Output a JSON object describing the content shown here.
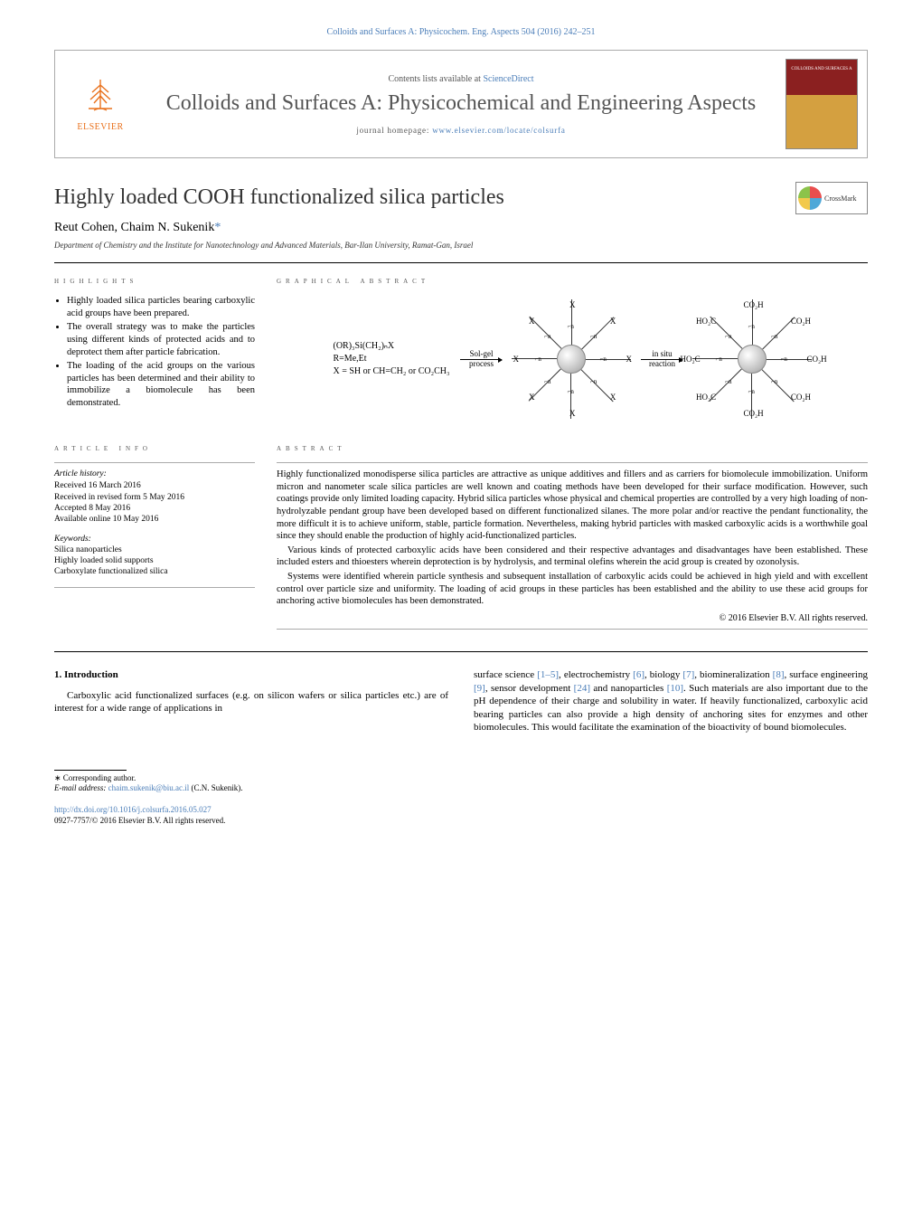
{
  "header": {
    "citation": "Colloids and Surfaces A: Physicochem. Eng. Aspects 504 (2016) 242–251",
    "contents_prefix": "Contents lists available at ",
    "contents_link": "ScienceDirect",
    "journal_title": "Colloids and Surfaces A: Physicochemical and Engineering Aspects",
    "homepage_prefix": "journal homepage: ",
    "homepage_link": "www.elsevier.com/locate/colsurfa",
    "publisher": "ELSEVIER",
    "cover_text_top": "COLLOIDS AND SURFACES A",
    "crossmark": "CrossMark"
  },
  "article": {
    "title": "Highly loaded COOH functionalized silica particles",
    "authors": "Reut Cohen, Chaim N. Sukenik",
    "corr_marker": "*",
    "affiliation": "Department of Chemistry and the Institute for Nanotechnology and Advanced Materials, Bar-Ilan University, Ramat-Gan, Israel"
  },
  "labels": {
    "highlights": "HIGHLIGHTS",
    "graphical_abstract": "GRAPHICAL ABSTRACT",
    "article_info": "ARTICLE INFO",
    "abstract": "ABSTRACT",
    "introduction": "1. Introduction"
  },
  "highlights": [
    "Highly loaded silica particles bearing carboxylic acid groups have been prepared.",
    "The overall strategy was to make the particles using different kinds of protected acids and to deprotect them after particle fabrication.",
    "The loading of the acid groups on the various particles has been determined and their ability to immobilize a biomolecule has been demonstrated."
  ],
  "graphical": {
    "formula_line1": "(OR)₃Si(CH₂)ₙX",
    "formula_line2": "R=Me,Et",
    "formula_line3": "X = SH or CH=CH₂ or CO₂CH₃",
    "arrow1_top": "Sol-gel",
    "arrow1_bottom": "process",
    "arrow2_top": "in situ",
    "arrow2_bottom": "reaction",
    "label_x": "X",
    "label_cooh": "CO₂H",
    "label_hooc": "HO₂C",
    "spoke_inner": "n"
  },
  "info": {
    "history_hd": "Article history:",
    "received": "Received 16 March 2016",
    "revised": "Received in revised form 5 May 2016",
    "accepted": "Accepted 8 May 2016",
    "online": "Available online 10 May 2016",
    "keywords_hd": "Keywords:",
    "kw1": "Silica nanoparticles",
    "kw2": "Highly loaded solid supports",
    "kw3": "Carboxylate functionalized silica"
  },
  "abstract": {
    "p1": "Highly functionalized monodisperse silica particles are attractive as unique additives and fillers and as carriers for biomolecule immobilization. Uniform micron and nanometer scale silica particles are well known and coating methods have been developed for their surface modification. However, such coatings provide only limited loading capacity. Hybrid silica particles whose physical and chemical properties are controlled by a very high loading of non-hydrolyzable pendant group have been developed based on different functionalized silanes. The more polar and/or reactive the pendant functionality, the more difficult it is to achieve uniform, stable, particle formation. Nevertheless, making hybrid particles with masked carboxylic acids is a worthwhile goal since they should enable the production of highly acid-functionalized particles.",
    "p2": "Various kinds of protected carboxylic acids have been considered and their respective advantages and disadvantages have been established. These included esters and thioesters wherein deprotection is by hydrolysis, and terminal olefins wherein the acid group is created by ozonolysis.",
    "p3": "Systems were identified wherein particle synthesis and subsequent installation of carboxylic acids could be achieved in high yield and with excellent control over particle size and uniformity. The loading of acid groups in these particles has been established and the ability to use these acid groups for anchoring active biomolecules has been demonstrated.",
    "copyright": "© 2016 Elsevier B.V. All rights reserved."
  },
  "body": {
    "left_p1": "Carboxylic acid functionalized surfaces (e.g. on silicon wafers or silica particles etc.) are of interest for a wide range of applications in",
    "right_prefix": "surface science ",
    "ref1": "[1–5]",
    "right_seg2": ", electrochemistry ",
    "ref2": "[6]",
    "right_seg3": ", biology ",
    "ref3": "[7]",
    "right_seg4": ", biomineralization ",
    "ref4": "[8]",
    "right_seg5": ", surface engineering ",
    "ref5": "[9]",
    "right_seg6": ", sensor development ",
    "ref6": "[24]",
    "right_seg7": " and nanoparticles ",
    "ref7": "[10]",
    "right_tail": ". Such materials are also important due to the pH dependence of their charge and solubility in water. If heavily functionalized, carboxylic acid bearing particles can also provide a high density of anchoring sites for enzymes and other biomolecules. This would facilitate the examination of the bioactivity of bound biomolecules."
  },
  "footnotes": {
    "corr": "Corresponding author.",
    "email_label": "E-mail address: ",
    "email": "chaim.sukenik@biu.ac.il",
    "email_tail": " (C.N. Sukenik)."
  },
  "doi": {
    "url": "http://dx.doi.org/10.1016/j.colsurfa.2016.05.027",
    "issn_line": "0927-7757/© 2016 Elsevier B.V. All rights reserved."
  },
  "style": {
    "link_color": "#4a7db8",
    "orange": "#e9711c"
  }
}
